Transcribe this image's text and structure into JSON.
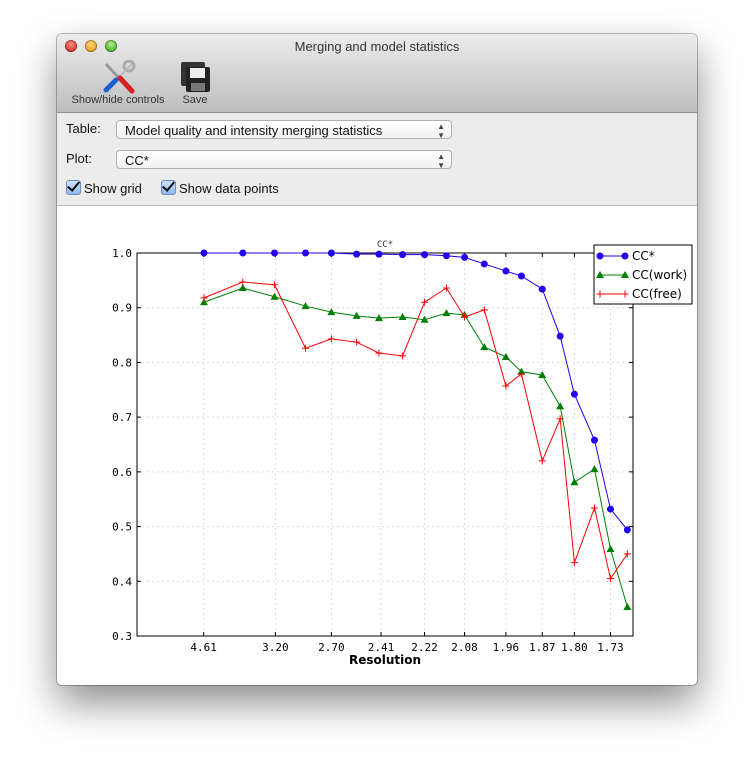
{
  "window": {
    "title": "Merging and model statistics"
  },
  "toolbar": {
    "show_hide_label": "Show/hide controls",
    "save_label": "Save",
    "show_hide_icon": "tools-icon",
    "save_icon": "floppy-disk-icon"
  },
  "controls": {
    "table_label": "Table:",
    "table_value": "Model quality and intensity merging statistics",
    "plot_label": "Plot:",
    "plot_value": "CC*",
    "show_grid_label": "Show grid",
    "show_grid_checked": true,
    "show_points_label": "Show data points",
    "show_points_checked": true
  },
  "chart_data": {
    "type": "line",
    "title": "CC*",
    "xlabel": "Resolution",
    "ylabel": "",
    "x_scale": "1/d^2",
    "xlim_inv_d2": [
      0,
      0.35
    ],
    "ylim": [
      0.3,
      1.0
    ],
    "grid": true,
    "legend": "top-right",
    "x_tick_labels": [
      "4.61",
      "3.20",
      "2.70",
      "2.41",
      "2.22",
      "2.08",
      "1.96",
      "1.87",
      "1.80",
      "1.73"
    ],
    "y_tick_labels": [
      "1.0",
      "0.9",
      "0.8",
      "0.7",
      "0.6",
      "0.5",
      "0.4",
      "0.3"
    ],
    "x": [
      4.6,
      3.66,
      3.21,
      2.9,
      2.7,
      2.54,
      2.42,
      2.31,
      2.22,
      2.14,
      2.08,
      2.02,
      1.96,
      1.92,
      1.87,
      1.83,
      1.8,
      1.76,
      1.73,
      1.7
    ],
    "series": [
      {
        "name": "CC*",
        "color": "#2200ee",
        "marker": "circle",
        "values": [
          1.0,
          1.0,
          1.0,
          1.0,
          1.0,
          0.998,
          0.998,
          0.997,
          0.997,
          0.995,
          0.992,
          0.98,
          0.967,
          0.958,
          0.934,
          0.848,
          0.742,
          0.658,
          0.532,
          0.494
        ]
      },
      {
        "name": "CC(work)",
        "color": "#008000",
        "marker": "triangle",
        "values": [
          0.91,
          0.936,
          0.92,
          0.903,
          0.892,
          0.885,
          0.881,
          0.883,
          0.878,
          0.89,
          0.887,
          0.828,
          0.81,
          0.783,
          0.777,
          0.72,
          0.581,
          0.605,
          0.459,
          0.353
        ]
      },
      {
        "name": "CC(free)",
        "color": "#ff0000",
        "marker": "plus",
        "values": [
          0.918,
          0.947,
          0.942,
          0.826,
          0.843,
          0.837,
          0.817,
          0.812,
          0.91,
          0.936,
          0.883,
          0.896,
          0.757,
          0.779,
          0.62,
          0.697,
          0.434,
          0.534,
          0.405,
          0.45
        ]
      }
    ]
  }
}
